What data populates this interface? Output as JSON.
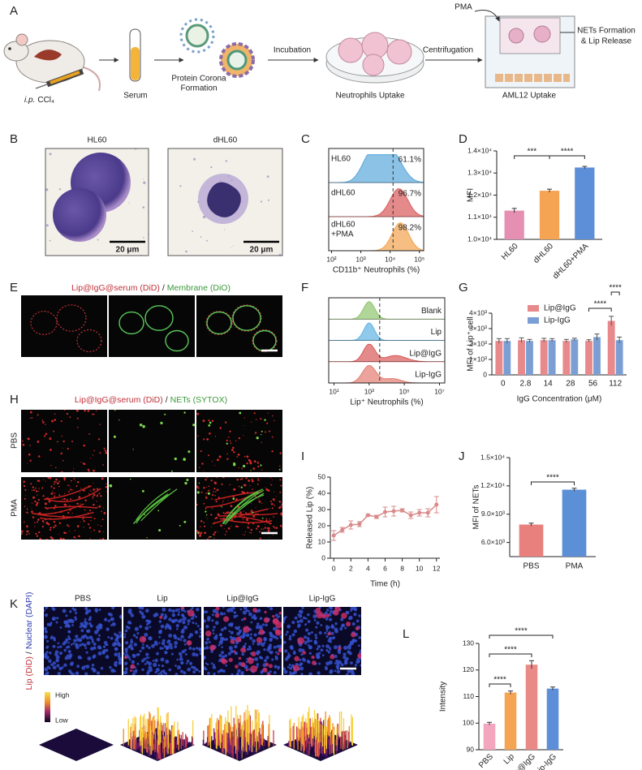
{
  "panel_labels": [
    "A",
    "B",
    "C",
    "D",
    "E",
    "F",
    "G",
    "H",
    "I",
    "J",
    "K",
    "L"
  ],
  "schematic": {
    "route": "i.p.",
    "agent": "CCl₄",
    "serum": "Serum",
    "corona": [
      "Protein Corona",
      "Formation"
    ],
    "incubation": "Incubation",
    "neutrophils": "Neutrophils Uptake",
    "centrifugation": "Centrifugation",
    "pma": "PMA",
    "nets": [
      "NETs Formation",
      "& Lip Release"
    ],
    "aml12": "AML12 Uptake"
  },
  "cells_b": {
    "titles": [
      "HL60",
      "dHL60"
    ],
    "scale_bar": "20 μm"
  },
  "flow_c": {
    "samples": [
      {
        "name": [
          "HL60"
        ],
        "percent": "61.1%"
      },
      {
        "name": [
          "dHL60"
        ],
        "percent": "96.7%"
      },
      {
        "name": [
          "dHL60",
          "+PMA"
        ],
        "percent": "98.2%"
      }
    ],
    "xscale": "log",
    "xlim": [
      80,
      140000
    ],
    "xticks": [
      {
        "value": 100,
        "label": "10²"
      },
      {
        "value": 1000,
        "label": "10³"
      },
      {
        "value": 10000,
        "label": "10⁴"
      },
      {
        "value": 100000,
        "label": "10⁵"
      }
    ],
    "xlabel": "CD11b⁺ Neutrophils (%)"
  },
  "membrane_e": {
    "title": {
      "red": "Lip@IgG@serum (DiD)",
      "separator": "/",
      "green": "Membrane (DiO)"
    }
  },
  "flow_f": {
    "samples": [
      "Blank",
      "Lip",
      "Lip@IgG",
      "Lip-IgG"
    ],
    "xscale": "log",
    "xlim": [
      5,
      20000000
    ],
    "xticks": [
      {
        "value": 10,
        "label": "10¹"
      },
      {
        "value": 1000,
        "label": "10³"
      },
      {
        "value": 100000,
        "label": "10⁵"
      },
      {
        "value": 10000000,
        "label": "10⁷"
      }
    ],
    "xlabel": "Lip⁺ Neutrophils (%)"
  },
  "nets_h": {
    "title": {
      "red": "Lip@IgG@serum (DiD)",
      "separator": "/",
      "green": "NETs (SYTOX)"
    },
    "rows": [
      "PBS",
      "PMA"
    ]
  },
  "uptake_k": {
    "columns": [
      "PBS",
      "Lip",
      "Lip@IgG",
      "Lip-IgG"
    ],
    "side_label": {
      "red": "Lip (DiD)",
      "separator": "/",
      "blue": "Nuclear (DAPI)"
    },
    "scale": {
      "high": "High",
      "low": "Low"
    }
  },
  "chart_data": [
    {
      "type": "bar",
      "categories": [
        "HL60",
        "dHL60",
        "dHL60+PMA"
      ],
      "values": [
        11300,
        12200,
        13250
      ],
      "errors": [
        100,
        70,
        50
      ],
      "colors": [
        "#e58fb3",
        "#f5a453",
        "#5d8fd8"
      ],
      "ylim": [
        10000,
        14000
      ],
      "yticks": [
        {
          "value": 10000,
          "label": "1.0×10⁴"
        },
        {
          "value": 11000,
          "label": "1.1×10⁴"
        },
        {
          "value": 12000,
          "label": "1.2×10⁴"
        },
        {
          "value": 13000,
          "label": "1.3×10⁴"
        },
        {
          "value": 14000,
          "label": "1.4×10⁴"
        }
      ],
      "ylabel": "MFI",
      "annotations": [
        "***",
        "****"
      ]
    },
    {
      "type": "grouped-bar",
      "categories": [
        "0",
        "2.8",
        "14",
        "28",
        "56",
        "112"
      ],
      "series": [
        {
          "name": "Lip@IgG",
          "color": "#e8898c",
          "values": [
            2200,
            2250,
            2250,
            2200,
            2200,
            3500
          ],
          "errors": [
            150,
            150,
            120,
            100,
            80,
            300
          ]
        },
        {
          "name": "Lip-IgG",
          "color": "#7b9fd4",
          "values": [
            2200,
            2200,
            2250,
            2300,
            2450,
            2250
          ],
          "errors": [
            150,
            100,
            100,
            80,
            200,
            200
          ]
        }
      ],
      "ylim": [
        0,
        4000
      ],
      "yticks": [
        0,
        {
          "value": 1000,
          "label": "1×10³"
        },
        {
          "value": 2000,
          "label": "2×10³"
        },
        {
          "value": 3000,
          "label": "3×10³"
        },
        {
          "value": 4000,
          "label": "4×10³"
        }
      ],
      "ylabel": "MFI of Lip⁺ cell",
      "xlabel": "IgG Concentration (μM)",
      "legend": "top-left",
      "annotations": [
        "****",
        "****"
      ]
    },
    {
      "type": "line",
      "x": [
        0,
        1,
        2,
        3,
        4,
        5,
        6,
        7,
        8,
        9,
        10,
        11,
        12
      ],
      "values": [
        14,
        17.5,
        20.5,
        21,
        26.5,
        25.5,
        28.5,
        29,
        29.5,
        26.5,
        28,
        28,
        33
      ],
      "errors": [
        3,
        1.5,
        2.5,
        1.5,
        0.5,
        1,
        3,
        3,
        1,
        2,
        2,
        2.5,
        5
      ],
      "color": "#d98a8a",
      "xlim": [
        -0.4,
        12.4
      ],
      "xticks": [
        0,
        2,
        4,
        6,
        8,
        10,
        12
      ],
      "ylim": [
        0,
        50
      ],
      "yticks": [
        0,
        10,
        20,
        30,
        40,
        50
      ],
      "ylabel": "Released Lip (%)",
      "xlabel": "Time (h)"
    },
    {
      "type": "bar",
      "categories": [
        "PBS",
        "PMA"
      ],
      "values": [
        7900,
        11600
      ],
      "errors": [
        150,
        150
      ],
      "colors": [
        "#e8807e",
        "#5b8fd6"
      ],
      "ylim": [
        4500,
        15000
      ],
      "yticks": [
        {
          "value": 6000,
          "label": "6.0×10³"
        },
        {
          "value": 9000,
          "label": "9.0×10³"
        },
        {
          "value": 12000,
          "label": "1.2×10⁴"
        },
        {
          "value": 15000,
          "label": "1.5×10⁴"
        }
      ],
      "ylabel": "MFI of NETs",
      "annotations": [
        "****"
      ]
    },
    {
      "type": "bar",
      "categories": [
        "PBS",
        "Lip",
        "Lip@IgG",
        "Lip-IgG"
      ],
      "values": [
        99.8,
        111.5,
        122,
        113
      ],
      "errors": [
        0.5,
        0.6,
        1.5,
        0.6
      ],
      "colors": [
        "#f4a6bf",
        "#f5a453",
        "#e98a87",
        "#5d8fd8"
      ],
      "ylim": [
        90,
        130
      ],
      "yticks": [
        90,
        100,
        110,
        120,
        130
      ],
      "ylabel": "Intensity",
      "annotations": [
        "****",
        "****",
        "****"
      ]
    }
  ]
}
